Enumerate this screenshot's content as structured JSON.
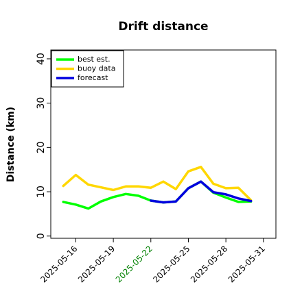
{
  "chart_data": {
    "type": "line",
    "title": "Drift distance",
    "ylabel": "Distance (km)",
    "xlabel": "",
    "ylim": [
      -0.5,
      42
    ],
    "yticks": [
      0,
      10,
      20,
      30,
      40
    ],
    "xlim": [
      "2025-05-14",
      "2025-06-01"
    ],
    "xtick_labels": [
      "2025-05-16",
      "2025-05-19",
      "2025-05-22",
      "2025-05-25",
      "2025-05-28",
      "2025-05-31"
    ],
    "highlighted_xtick": "2025-05-22",
    "grid": false,
    "legend_position": "top-left",
    "series": [
      {
        "name": "best est.",
        "color": "#00ff00",
        "x": [
          "2025-05-15",
          "2025-05-16",
          "2025-05-17",
          "2025-05-18",
          "2025-05-19",
          "2025-05-20",
          "2025-05-21",
          "2025-05-22",
          "2025-05-23",
          "2025-05-24",
          "2025-05-25",
          "2025-05-26",
          "2025-05-27",
          "2025-05-28",
          "2025-05-29",
          "2025-05-30"
        ],
        "values": [
          7.7,
          7.1,
          6.2,
          7.8,
          8.8,
          9.5,
          9.1,
          8.0,
          7.6,
          7.8,
          10.8,
          12.3,
          9.8,
          8.7,
          7.7,
          7.8
        ]
      },
      {
        "name": "buoy data",
        "color": "#ffd700",
        "x": [
          "2025-05-15",
          "2025-05-16",
          "2025-05-17",
          "2025-05-18",
          "2025-05-19",
          "2025-05-20",
          "2025-05-21",
          "2025-05-22",
          "2025-05-23",
          "2025-05-24",
          "2025-05-25",
          "2025-05-26",
          "2025-05-27",
          "2025-05-28",
          "2025-05-29",
          "2025-05-30"
        ],
        "values": [
          11.3,
          13.8,
          11.6,
          11.0,
          10.4,
          11.2,
          11.2,
          10.9,
          12.3,
          10.6,
          14.6,
          15.6,
          11.8,
          10.8,
          10.9,
          8.1
        ]
      },
      {
        "name": "forecast",
        "color": "#0000e0",
        "x": [
          "2025-05-22",
          "2025-05-23",
          "2025-05-24",
          "2025-05-25",
          "2025-05-26",
          "2025-05-27",
          "2025-05-28",
          "2025-05-29",
          "2025-05-30"
        ],
        "values": [
          8.0,
          7.6,
          7.8,
          10.8,
          12.3,
          9.9,
          9.4,
          8.5,
          7.9
        ]
      }
    ]
  }
}
